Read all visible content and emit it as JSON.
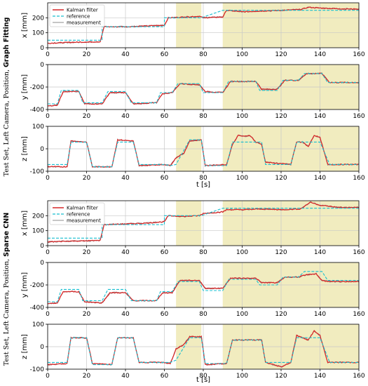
{
  "colors": {
    "kalman": "#d62728",
    "reference": "#17becf",
    "measurement": "#8c8c8c",
    "shade": "#f1ecbf"
  },
  "groups": [
    {
      "side_label_prefix": "Test Set, Left Camera, Position, ",
      "side_label_bold": "Graph Fitting"
    },
    {
      "side_label_prefix": "Test Set, Left Camera, Position, ",
      "side_label_bold": "Sparse CNN"
    }
  ],
  "legend": {
    "entries": [
      "Kalman filter",
      "reference",
      "measurement"
    ]
  },
  "xlabel": "t [s]",
  "chart_data": [
    {
      "type": "line",
      "group": "Graph Fitting",
      "ylabel": "x [mm]",
      "xlim": [
        0,
        160
      ],
      "ylim": [
        0,
        300
      ],
      "yticks": [
        0,
        100,
        200
      ],
      "xticks": [
        0,
        20,
        40,
        60,
        80,
        100,
        120,
        140,
        160
      ],
      "grid": true,
      "legend": "top-left",
      "shaded_x": [
        [
          66,
          79
        ],
        [
          90,
          160
        ]
      ],
      "reference": [
        [
          0,
          50
        ],
        [
          28,
          50
        ],
        [
          28,
          140
        ],
        [
          60,
          140
        ],
        [
          60,
          200
        ],
        [
          66,
          200
        ],
        [
          79,
          200
        ],
        [
          90,
          250
        ],
        [
          160,
          250
        ]
      ],
      "kalman": [
        [
          0,
          30
        ],
        [
          10,
          35
        ],
        [
          20,
          38
        ],
        [
          27,
          40
        ],
        [
          29,
          140
        ],
        [
          40,
          140
        ],
        [
          50,
          145
        ],
        [
          60,
          150
        ],
        [
          62,
          200
        ],
        [
          70,
          205
        ],
        [
          78,
          210
        ],
        [
          80,
          200
        ],
        [
          90,
          205
        ],
        [
          92,
          250
        ],
        [
          100,
          240
        ],
        [
          110,
          245
        ],
        [
          120,
          250
        ],
        [
          130,
          255
        ],
        [
          134,
          270
        ],
        [
          140,
          265
        ],
        [
          150,
          260
        ],
        [
          160,
          258
        ]
      ]
    },
    {
      "type": "line",
      "group": "Graph Fitting",
      "ylabel": "y [mm]",
      "xlim": [
        0,
        160
      ],
      "ylim": [
        -400,
        0
      ],
      "yticks": [
        -400,
        -200,
        0
      ],
      "xticks": [
        0,
        20,
        40,
        60,
        80,
        100,
        120,
        140,
        160
      ],
      "grid": true,
      "shaded_x": [
        [
          66,
          79
        ],
        [
          90,
          160
        ]
      ],
      "reference": [
        [
          0,
          -350
        ],
        [
          5,
          -350
        ],
        [
          7,
          -230
        ],
        [
          16,
          -230
        ],
        [
          18,
          -340
        ],
        [
          28,
          -340
        ],
        [
          31,
          -240
        ],
        [
          40,
          -240
        ],
        [
          43,
          -340
        ],
        [
          56,
          -340
        ],
        [
          58,
          -250
        ],
        [
          64,
          -250
        ],
        [
          67,
          -170
        ],
        [
          78,
          -170
        ],
        [
          80,
          -250
        ],
        [
          90,
          -250
        ],
        [
          93,
          -150
        ],
        [
          107,
          -150
        ],
        [
          109,
          -230
        ],
        [
          118,
          -230
        ],
        [
          121,
          -140
        ],
        [
          129,
          -140
        ],
        [
          132,
          -80
        ],
        [
          141,
          -80
        ],
        [
          144,
          -160
        ],
        [
          160,
          -160
        ]
      ],
      "kalman": [
        [
          0,
          -370
        ],
        [
          5,
          -360
        ],
        [
          8,
          -240
        ],
        [
          16,
          -240
        ],
        [
          19,
          -350
        ],
        [
          28,
          -350
        ],
        [
          32,
          -250
        ],
        [
          40,
          -250
        ],
        [
          44,
          -350
        ],
        [
          56,
          -340
        ],
        [
          59,
          -260
        ],
        [
          64,
          -250
        ],
        [
          68,
          -170
        ],
        [
          78,
          -180
        ],
        [
          81,
          -240
        ],
        [
          90,
          -250
        ],
        [
          94,
          -150
        ],
        [
          107,
          -150
        ],
        [
          110,
          -220
        ],
        [
          118,
          -220
        ],
        [
          122,
          -140
        ],
        [
          129,
          -140
        ],
        [
          133,
          -80
        ],
        [
          141,
          -80
        ],
        [
          145,
          -160
        ],
        [
          160,
          -160
        ]
      ]
    },
    {
      "type": "line",
      "group": "Graph Fitting",
      "ylabel": "z [mm]",
      "xlim": [
        0,
        160
      ],
      "ylim": [
        -100,
        100
      ],
      "yticks": [
        -100,
        0,
        100
      ],
      "xticks": [
        0,
        20,
        40,
        60,
        80,
        100,
        120,
        140,
        160
      ],
      "grid": true,
      "shaded_x": [
        [
          66,
          79
        ],
        [
          90,
          160
        ]
      ],
      "reference": [
        [
          0,
          -70
        ],
        [
          10,
          -70
        ],
        [
          12,
          30
        ],
        [
          20,
          30
        ],
        [
          23,
          -80
        ],
        [
          33,
          -80
        ],
        [
          36,
          30
        ],
        [
          44,
          30
        ],
        [
          47,
          -70
        ],
        [
          60,
          -70
        ],
        [
          63,
          -75
        ],
        [
          66,
          -70
        ],
        [
          73,
          40
        ],
        [
          79,
          40
        ],
        [
          81,
          -75
        ],
        [
          92,
          -75
        ],
        [
          95,
          30
        ],
        [
          110,
          30
        ],
        [
          112,
          -70
        ],
        [
          125,
          -70
        ],
        [
          128,
          30
        ],
        [
          140,
          30
        ],
        [
          145,
          -70
        ],
        [
          160,
          -70
        ]
      ],
      "kalman": [
        [
          0,
          -80
        ],
        [
          10,
          -80
        ],
        [
          12,
          35
        ],
        [
          20,
          30
        ],
        [
          23,
          -80
        ],
        [
          33,
          -80
        ],
        [
          36,
          40
        ],
        [
          44,
          35
        ],
        [
          47,
          -75
        ],
        [
          60,
          -70
        ],
        [
          63,
          -75
        ],
        [
          66,
          -40
        ],
        [
          70,
          -20
        ],
        [
          73,
          35
        ],
        [
          79,
          40
        ],
        [
          81,
          -75
        ],
        [
          92,
          -70
        ],
        [
          95,
          20
        ],
        [
          98,
          60
        ],
        [
          101,
          55
        ],
        [
          104,
          60
        ],
        [
          107,
          30
        ],
        [
          110,
          20
        ],
        [
          112,
          -60
        ],
        [
          125,
          -70
        ],
        [
          128,
          30
        ],
        [
          131,
          30
        ],
        [
          134,
          10
        ],
        [
          137,
          60
        ],
        [
          140,
          50
        ],
        [
          144,
          -70
        ],
        [
          160,
          -70
        ]
      ]
    },
    {
      "type": "line",
      "group": "Sparse CNN",
      "ylabel": "x [mm]",
      "xlim": [
        0,
        160
      ],
      "ylim": [
        0,
        300
      ],
      "yticks": [
        0,
        100,
        200
      ],
      "xticks": [
        0,
        20,
        40,
        60,
        80,
        100,
        120,
        140,
        160
      ],
      "grid": true,
      "legend": "top-left",
      "shaded_x": [
        [
          66,
          79
        ],
        [
          90,
          160
        ]
      ],
      "reference": [
        [
          0,
          50
        ],
        [
          28,
          50
        ],
        [
          28,
          140
        ],
        [
          60,
          140
        ],
        [
          60,
          200
        ],
        [
          66,
          200
        ],
        [
          79,
          200
        ],
        [
          90,
          250
        ],
        [
          160,
          250
        ]
      ],
      "kalman": [
        [
          0,
          25
        ],
        [
          10,
          30
        ],
        [
          20,
          32
        ],
        [
          27,
          35
        ],
        [
          29,
          140
        ],
        [
          40,
          145
        ],
        [
          50,
          150
        ],
        [
          60,
          160
        ],
        [
          62,
          200
        ],
        [
          70,
          195
        ],
        [
          78,
          200
        ],
        [
          80,
          215
        ],
        [
          90,
          225
        ],
        [
          92,
          240
        ],
        [
          100,
          240
        ],
        [
          110,
          245
        ],
        [
          120,
          240
        ],
        [
          130,
          245
        ],
        [
          135,
          290
        ],
        [
          140,
          270
        ],
        [
          150,
          255
        ],
        [
          160,
          255
        ]
      ]
    },
    {
      "type": "line",
      "group": "Sparse CNN",
      "ylabel": "y [mm]",
      "xlim": [
        0,
        160
      ],
      "ylim": [
        -400,
        0
      ],
      "yticks": [
        -400,
        -200,
        0
      ],
      "xticks": [
        0,
        20,
        40,
        60,
        80,
        100,
        120,
        140,
        160
      ],
      "grid": true,
      "shaded_x": [
        [
          66,
          79
        ],
        [
          90,
          160
        ]
      ],
      "reference": [
        [
          0,
          -350
        ],
        [
          5,
          -350
        ],
        [
          7,
          -240
        ],
        [
          16,
          -240
        ],
        [
          18,
          -340
        ],
        [
          28,
          -340
        ],
        [
          31,
          -240
        ],
        [
          40,
          -240
        ],
        [
          43,
          -340
        ],
        [
          56,
          -340
        ],
        [
          58,
          -260
        ],
        [
          64,
          -260
        ],
        [
          67,
          -170
        ],
        [
          78,
          -170
        ],
        [
          80,
          -250
        ],
        [
          90,
          -250
        ],
        [
          93,
          -150
        ],
        [
          107,
          -150
        ],
        [
          109,
          -200
        ],
        [
          118,
          -200
        ],
        [
          121,
          -130
        ],
        [
          129,
          -130
        ],
        [
          132,
          -80
        ],
        [
          141,
          -80
        ],
        [
          144,
          -160
        ],
        [
          160,
          -160
        ]
      ],
      "kalman": [
        [
          0,
          -370
        ],
        [
          5,
          -360
        ],
        [
          8,
          -260
        ],
        [
          16,
          -260
        ],
        [
          19,
          -350
        ],
        [
          28,
          -360
        ],
        [
          32,
          -270
        ],
        [
          40,
          -270
        ],
        [
          44,
          -340
        ],
        [
          56,
          -340
        ],
        [
          59,
          -270
        ],
        [
          64,
          -270
        ],
        [
          68,
          -160
        ],
        [
          78,
          -160
        ],
        [
          81,
          -230
        ],
        [
          90,
          -230
        ],
        [
          94,
          -140
        ],
        [
          107,
          -140
        ],
        [
          110,
          -180
        ],
        [
          118,
          -180
        ],
        [
          122,
          -130
        ],
        [
          129,
          -130
        ],
        [
          133,
          -110
        ],
        [
          138,
          -100
        ],
        [
          141,
          -160
        ],
        [
          145,
          -170
        ],
        [
          160,
          -170
        ]
      ]
    },
    {
      "type": "line",
      "group": "Sparse CNN",
      "ylabel": "z [mm]",
      "xlim": [
        0,
        160
      ],
      "ylim": [
        -100,
        100
      ],
      "yticks": [
        -100,
        0,
        100
      ],
      "xticks": [
        0,
        20,
        40,
        60,
        80,
        100,
        120,
        140,
        160
      ],
      "grid": true,
      "shaded_x": [
        [
          66,
          79
        ],
        [
          90,
          160
        ]
      ],
      "reference": [
        [
          0,
          -70
        ],
        [
          10,
          -70
        ],
        [
          12,
          40
        ],
        [
          20,
          40
        ],
        [
          23,
          -80
        ],
        [
          33,
          -80
        ],
        [
          36,
          40
        ],
        [
          44,
          40
        ],
        [
          47,
          -70
        ],
        [
          60,
          -70
        ],
        [
          63,
          -70
        ],
        [
          66,
          -60
        ],
        [
          73,
          40
        ],
        [
          79,
          40
        ],
        [
          81,
          -75
        ],
        [
          92,
          -75
        ],
        [
          95,
          30
        ],
        [
          110,
          30
        ],
        [
          112,
          -70
        ],
        [
          125,
          -70
        ],
        [
          128,
          40
        ],
        [
          140,
          40
        ],
        [
          145,
          -70
        ],
        [
          160,
          -70
        ]
      ],
      "kalman": [
        [
          0,
          -80
        ],
        [
          10,
          -75
        ],
        [
          12,
          40
        ],
        [
          20,
          40
        ],
        [
          23,
          -75
        ],
        [
          33,
          -80
        ],
        [
          36,
          40
        ],
        [
          44,
          40
        ],
        [
          47,
          -70
        ],
        [
          60,
          -70
        ],
        [
          63,
          -75
        ],
        [
          66,
          -10
        ],
        [
          70,
          10
        ],
        [
          73,
          45
        ],
        [
          79,
          45
        ],
        [
          81,
          -80
        ],
        [
          92,
          -75
        ],
        [
          95,
          30
        ],
        [
          110,
          30
        ],
        [
          112,
          -70
        ],
        [
          120,
          -90
        ],
        [
          125,
          -70
        ],
        [
          128,
          50
        ],
        [
          131,
          40
        ],
        [
          134,
          30
        ],
        [
          137,
          70
        ],
        [
          140,
          50
        ],
        [
          144,
          -70
        ],
        [
          160,
          -70
        ]
      ]
    }
  ]
}
